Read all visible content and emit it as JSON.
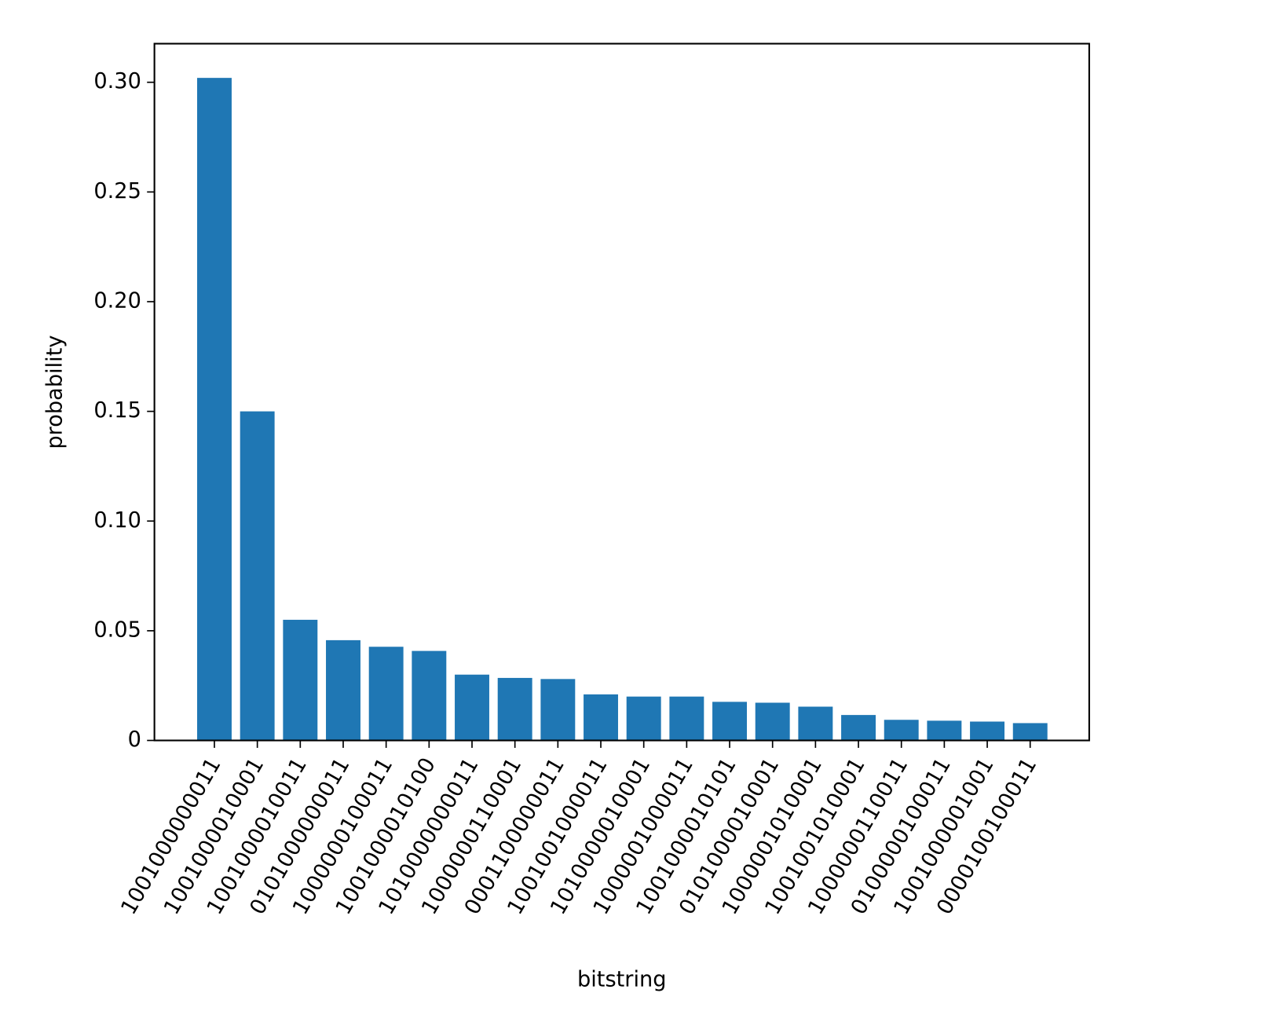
{
  "chart_data": {
    "type": "bar",
    "x_label": "bitstring",
    "y_label": "probability",
    "categories": [
      "1001000000011",
      "1001000010001",
      "1001000010011",
      "0101000000011",
      "1000000100011",
      "1001000010100",
      "1010000000011",
      "1000000110001",
      "0001100000011",
      "1001001000011",
      "1010000010001",
      "1000001000011",
      "1001000010101",
      "0101000010001",
      "1000001010001",
      "1001001010001",
      "1000000110011",
      "0100000100011",
      "1001000001001",
      "0000100100011"
    ],
    "values": [
      0.302,
      0.15,
      0.055,
      0.0457,
      0.0427,
      0.0408,
      0.03,
      0.0285,
      0.028,
      0.021,
      0.02,
      0.02,
      0.0176,
      0.0172,
      0.0154,
      0.0116,
      0.0094,
      0.009,
      0.0086,
      0.0079
    ],
    "color": "#1f77b4",
    "ylim": [
      0,
      0.3176
    ],
    "yticks": [
      0,
      {
        "value": 0.05,
        "label": "0.05"
      },
      {
        "value": 0.1,
        "label": "0.10"
      },
      {
        "value": 0.15,
        "label": "0.15"
      },
      {
        "value": 0.2,
        "label": "0.20"
      },
      {
        "value": 0.25,
        "label": "0.25"
      },
      {
        "value": 0.3,
        "label": "0.30"
      }
    ]
  }
}
